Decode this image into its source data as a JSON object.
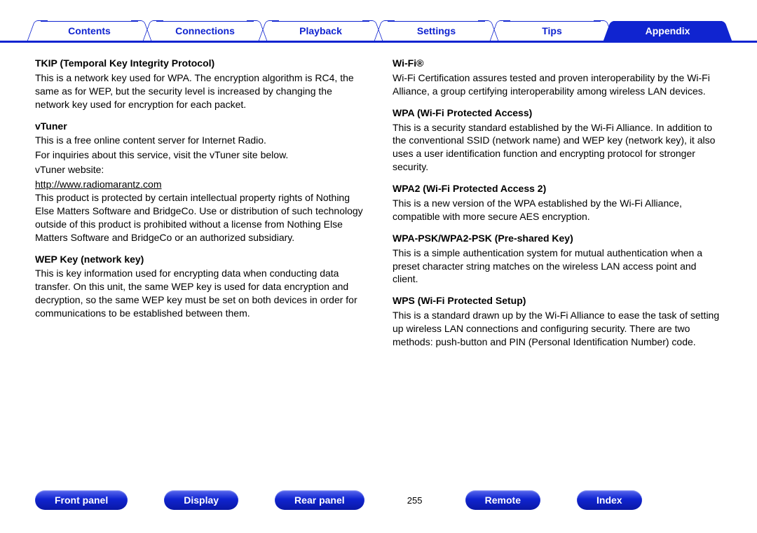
{
  "colors": {
    "primary": "#1024d0",
    "white": "#ffffff",
    "black": "#000000"
  },
  "top_tabs": [
    {
      "label": "Contents",
      "active": false
    },
    {
      "label": "Connections",
      "active": false
    },
    {
      "label": "Playback",
      "active": false
    },
    {
      "label": "Settings",
      "active": false
    },
    {
      "label": "Tips",
      "active": false
    },
    {
      "label": "Appendix",
      "active": true
    }
  ],
  "left_col": {
    "tkip": {
      "title": "TKIP (Temporal Key Integrity Protocol)",
      "body": "This is a network key used for WPA. The encryption algorithm is RC4, the same as for WEP, but the security level is increased by changing the network key used for encryption for each packet."
    },
    "vtuner": {
      "title": "vTuner",
      "body1": "This is a free online content server for Internet Radio.",
      "body2": "For inquiries about this service, visit the vTuner site below.",
      "body3": "vTuner website:",
      "link": "http://www.radiomarantz.com",
      "body4": "This product is protected by certain intellectual property rights of Nothing Else Matters Software and BridgeCo. Use or distribution of such technology outside of this product is prohibited without a license from Nothing Else Matters Software and BridgeCo or an authorized subsidiary."
    },
    "wep": {
      "title": "WEP Key (network key)",
      "body": "This is key information used for encrypting data when conducting data transfer. On this unit, the same WEP key is used for data encryption and decryption, so the same WEP key must be set on both devices in order for communications to be established between them."
    }
  },
  "right_col": {
    "wifi": {
      "title": "Wi-Fi®",
      "body": "Wi-Fi Certification assures tested and proven interoperability by the Wi-Fi Alliance, a group certifying interoperability among wireless LAN devices."
    },
    "wpa": {
      "title": "WPA (Wi-Fi Protected Access)",
      "body": "This is a security standard established by the Wi-Fi Alliance. In addition to the conventional SSID (network name) and WEP key (network key), it also uses a user identification function and encrypting protocol for stronger security."
    },
    "wpa2": {
      "title": "WPA2 (Wi-Fi Protected Access 2)",
      "body": "This is a new version of the WPA established by the Wi-Fi Alliance, compatible with more secure AES encryption."
    },
    "psk": {
      "title": "WPA-PSK/WPA2-PSK (Pre-shared Key)",
      "body": "This is a simple authentication system for mutual authentication when a preset character string matches on the wireless LAN access point and client."
    },
    "wps": {
      "title": "WPS (Wi-Fi Protected Setup)",
      "body": "This is a standard drawn up by the Wi-Fi Alliance to ease the task of setting up wireless LAN connections and configuring security. There are two methods: push-button and PIN (Personal Identification Number) code."
    }
  },
  "bottom": {
    "front": "Front panel",
    "display": "Display",
    "rear": "Rear panel",
    "page": "255",
    "remote": "Remote",
    "index": "Index"
  }
}
